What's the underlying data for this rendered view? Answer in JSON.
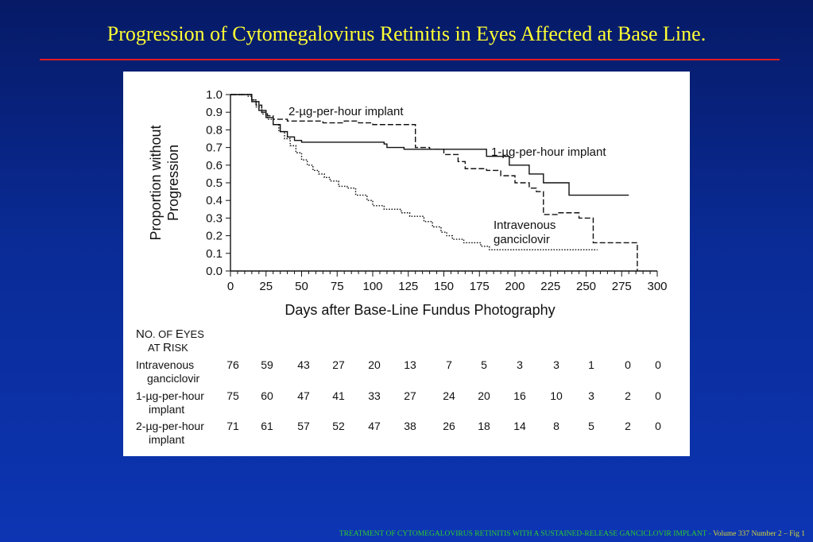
{
  "slide": {
    "title": "Progression of Cytomegalovirus Retinitis in Eyes Affected at Base Line.",
    "footer_main": "TREATMENT OF CYTOMEGALOVIRUS RETINITIS WITH A SUSTAINED-RELEASE GANCICLOVIR IMPLANT - ",
    "footer_vol": "Volume 337 Number 2 – Fig 1",
    "title_color": "#ffff33",
    "rule_color": "#e31b23",
    "background": "#0a2b96"
  },
  "chart_data": {
    "type": "line",
    "subtype": "step (Kaplan–Meier)",
    "ylabel_line1": "Proportion without",
    "ylabel_line2": "Progression",
    "xlabel": "Days after Base-Line Fundus Photography",
    "xlim": [
      0,
      300
    ],
    "ylim": [
      0,
      1.0
    ],
    "x_ticks": [
      0,
      25,
      50,
      75,
      100,
      125,
      150,
      175,
      200,
      225,
      250,
      275,
      300
    ],
    "y_ticks": [
      "0.0",
      "0.1",
      "0.2",
      "0.3",
      "0.4",
      "0.5",
      "0.6",
      "0.7",
      "0.8",
      "0.9",
      "1.0"
    ],
    "grid": false,
    "series": [
      {
        "name": "Intravenous ganciclovir",
        "label_line1": "Intravenous",
        "label_line2": "ganciclovir",
        "style": "dotted",
        "x": [
          0,
          12,
          15,
          18,
          22,
          26,
          30,
          34,
          38,
          42,
          46,
          50,
          54,
          58,
          62,
          66,
          70,
          76,
          82,
          88,
          96,
          100,
          108,
          120,
          126,
          136,
          142,
          148,
          152,
          156,
          164,
          176,
          182,
          258
        ],
        "y": [
          1.0,
          0.99,
          0.97,
          0.93,
          0.89,
          0.86,
          0.83,
          0.79,
          0.75,
          0.71,
          0.67,
          0.63,
          0.6,
          0.57,
          0.55,
          0.53,
          0.51,
          0.48,
          0.47,
          0.43,
          0.4,
          0.37,
          0.35,
          0.33,
          0.31,
          0.28,
          0.25,
          0.22,
          0.2,
          0.18,
          0.16,
          0.14,
          0.12,
          0.12
        ]
      },
      {
        "name": "1-µg-per-hour implant",
        "label": "1-µg-per-hour implant",
        "style": "solid",
        "x": [
          0,
          15,
          20,
          25,
          30,
          35,
          40,
          45,
          50,
          60,
          108,
          110,
          122,
          172,
          180,
          196,
          210,
          220,
          238,
          280
        ],
        "y": [
          1.0,
          0.96,
          0.91,
          0.87,
          0.83,
          0.79,
          0.76,
          0.74,
          0.73,
          0.73,
          0.72,
          0.7,
          0.69,
          0.69,
          0.65,
          0.6,
          0.55,
          0.5,
          0.43,
          0.43
        ]
      },
      {
        "name": "2-µg-per-hour implant",
        "label": "2-µg-per-hour implant",
        "style": "dashed",
        "x": [
          0,
          15,
          18,
          22,
          26,
          30,
          40,
          65,
          80,
          90,
          100,
          120,
          130,
          140,
          150,
          160,
          165,
          180,
          190,
          200,
          210,
          215,
          220,
          230,
          245,
          255,
          280,
          285,
          286
        ],
        "y": [
          1.0,
          0.97,
          0.94,
          0.9,
          0.88,
          0.86,
          0.85,
          0.84,
          0.85,
          0.84,
          0.83,
          0.83,
          0.7,
          0.69,
          0.66,
          0.62,
          0.58,
          0.57,
          0.54,
          0.5,
          0.47,
          0.45,
          0.32,
          0.33,
          0.3,
          0.16,
          0.16,
          0.16,
          0.0
        ]
      }
    ],
    "risk_table": {
      "header_line1_big": "N",
      "header_line1_small": "O. OF ",
      "header_line1_big2": "E",
      "header_line1_small2": "YES",
      "header_line2_small": "AT ",
      "header_line2_big": "R",
      "header_line2_small2": "ISK",
      "rows": [
        {
          "label_line1": "Intravenous",
          "label_line2": "ganciclovir",
          "values": [
            "76",
            "59",
            "43",
            "27",
            "20",
            "13",
            "7",
            "5",
            "3",
            "3",
            "1",
            "0",
            "0"
          ]
        },
        {
          "label_line1": "1-µg-per-hour",
          "label_line2": "implant",
          "values": [
            "75",
            "60",
            "47",
            "41",
            "33",
            "27",
            "24",
            "20",
            "16",
            "10",
            "3",
            "2",
            "0"
          ]
        },
        {
          "label_line1": "2-µg-per-hour",
          "label_line2": "implant",
          "values": [
            "71",
            "61",
            "57",
            "52",
            "47",
            "38",
            "26",
            "18",
            "14",
            "8",
            "5",
            "2",
            "0"
          ]
        }
      ]
    }
  }
}
